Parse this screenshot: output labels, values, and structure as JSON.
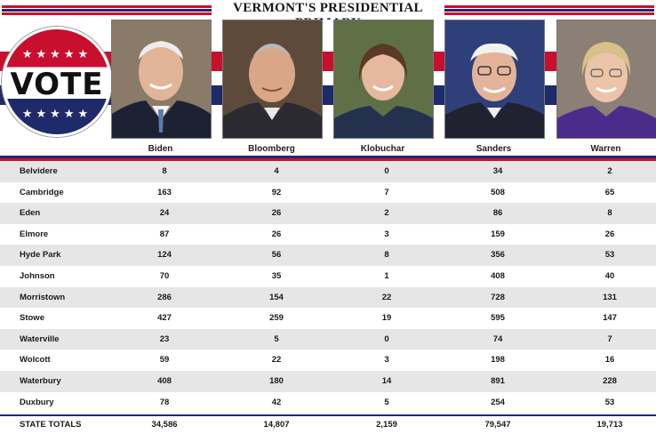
{
  "header": {
    "title": "VERMONT'S PRESIDENTIAL PRIMARY"
  },
  "badge": {
    "word": "VOTE",
    "stars": "★★★★★"
  },
  "candidates": [
    {
      "name": "Biden"
    },
    {
      "name": "Bloomberg"
    },
    {
      "name": "Klobuchar"
    },
    {
      "name": "Sanders"
    },
    {
      "name": "Warren"
    }
  ],
  "rows": [
    {
      "town": "Belvidere",
      "votes": [
        "8",
        "4",
        "0",
        "34",
        "2"
      ]
    },
    {
      "town": "Cambridge",
      "votes": [
        "163",
        "92",
        "7",
        "508",
        "65"
      ]
    },
    {
      "town": "Eden",
      "votes": [
        "24",
        "26",
        "2",
        "86",
        "8"
      ]
    },
    {
      "town": "Elmore",
      "votes": [
        "87",
        "26",
        "3",
        "159",
        "26"
      ]
    },
    {
      "town": "Hyde Park",
      "votes": [
        "124",
        "56",
        "8",
        "356",
        "53"
      ]
    },
    {
      "town": "Johnson",
      "votes": [
        "70",
        "35",
        "1",
        "408",
        "40"
      ]
    },
    {
      "town": "Morristown",
      "votes": [
        "286",
        "154",
        "22",
        "728",
        "131"
      ]
    },
    {
      "town": "Stowe",
      "votes": [
        "427",
        "259",
        "19",
        "595",
        "147"
      ]
    },
    {
      "town": "Waterville",
      "votes": [
        "23",
        "5",
        "0",
        "74",
        "7"
      ]
    },
    {
      "town": "Wolcott",
      "votes": [
        "59",
        "22",
        "3",
        "198",
        "16"
      ]
    },
    {
      "town": "Waterbury",
      "votes": [
        "408",
        "180",
        "14",
        "891",
        "228"
      ]
    },
    {
      "town": "Duxbury",
      "votes": [
        "78",
        "42",
        "5",
        "254",
        "53"
      ]
    }
  ],
  "totals": {
    "label": "STATE TOTALS",
    "votes": [
      "34,586",
      "14,807",
      "2,159",
      "79,547",
      "19,713"
    ]
  },
  "colors": {
    "red": "#c8102e",
    "navy": "#1f2a6b",
    "row_alt": "#e6e6e6"
  }
}
